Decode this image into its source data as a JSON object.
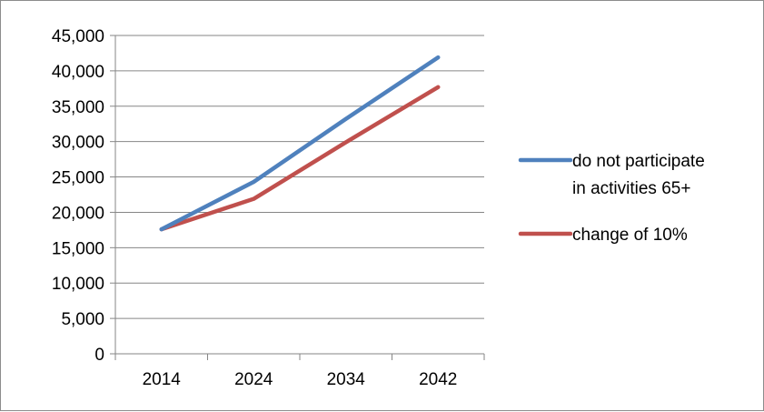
{
  "chart_data": {
    "type": "line",
    "categories": [
      "2014",
      "2024",
      "2034",
      "2042"
    ],
    "series": [
      {
        "name_lines": [
          "do not participate",
          "in activities 65+"
        ],
        "name": "do not participate in activities 65+",
        "color": "#4f81bd",
        "values": [
          17600,
          24300,
          33200,
          41900
        ]
      },
      {
        "name_lines": [
          "change of 10%"
        ],
        "name": "change of 10%",
        "color": "#c0504d",
        "values": [
          17600,
          21900,
          29900,
          37700
        ]
      }
    ],
    "y_ticks": [
      "0",
      "5,000",
      "10,000",
      "15,000",
      "20,000",
      "25,000",
      "30,000",
      "35,000",
      "40,000",
      "45,000"
    ],
    "ylim": [
      0,
      45000
    ],
    "grid": true,
    "legend": "right",
    "title": "",
    "xlabel": "",
    "ylabel": ""
  }
}
